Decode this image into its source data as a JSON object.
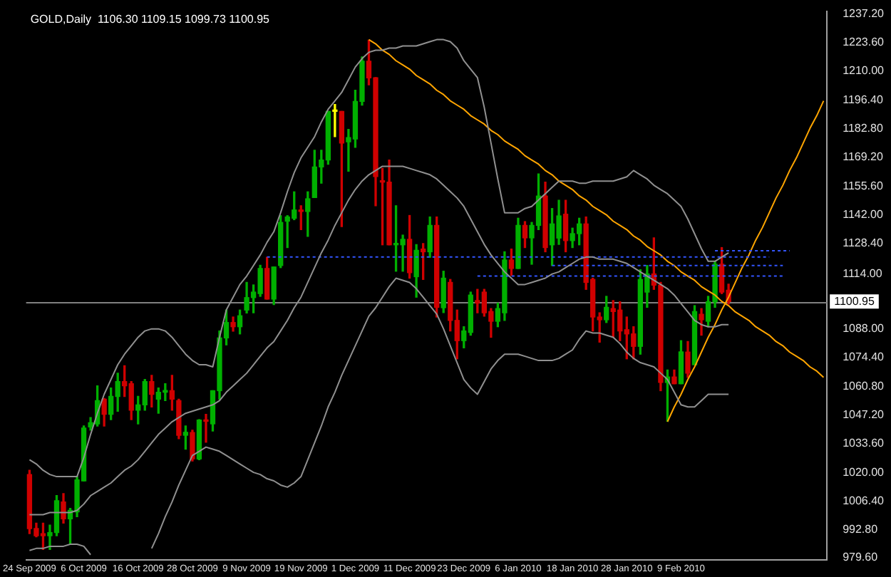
{
  "chart_data": {
    "type": "candlestick",
    "title": "GOLD,Daily  1106.30 1109.15 1099.73 1100.95",
    "categories": [
      "24 Sep 2009",
      null,
      null,
      null,
      null,
      null,
      null,
      null,
      "6 Oct 2009",
      null,
      null,
      null,
      null,
      null,
      null,
      null,
      "16 Oct 2009",
      null,
      null,
      null,
      null,
      null,
      null,
      null,
      "28 Oct 2009",
      null,
      null,
      null,
      null,
      null,
      null,
      null,
      "9 Nov 2009",
      null,
      null,
      null,
      null,
      null,
      null,
      null,
      "19 Nov 2009",
      null,
      null,
      null,
      null,
      null,
      null,
      null,
      "1 Dec 2009",
      null,
      null,
      null,
      null,
      null,
      null,
      null,
      "11 Dec 2009",
      null,
      null,
      null,
      null,
      null,
      null,
      null,
      "23 Dec 2009",
      null,
      null,
      null,
      null,
      null,
      null,
      null,
      "6 Jan 2010",
      null,
      null,
      null,
      null,
      null,
      null,
      null,
      "18 Jan 2010",
      null,
      null,
      null,
      null,
      null,
      null,
      null,
      "28 Jan 2010",
      null,
      null,
      null,
      null,
      null,
      null,
      null,
      "9 Feb 2010",
      null,
      null,
      null,
      null,
      null,
      null,
      null,
      null,
      null,
      null,
      null,
      null,
      null,
      null,
      null,
      null,
      null,
      null,
      null,
      null,
      null
    ],
    "ohlc": [
      [
        1019,
        1021,
        991,
        993.4
      ],
      [
        993.4,
        996,
        989.5,
        990
      ],
      [
        991,
        996,
        983.5,
        990
      ],
      [
        990,
        995,
        983.5,
        991.5
      ],
      [
        991.5,
        1009,
        990,
        1006.6
      ],
      [
        1006,
        1010,
        996,
        998
      ],
      [
        998,
        1003,
        986,
        1002
      ],
      [
        1001.3,
        1018,
        999,
        1016.5
      ],
      [
        1016,
        1042,
        1016,
        1041
      ],
      [
        1041.5,
        1046,
        1040,
        1043.5
      ],
      [
        1043,
        1061,
        1042,
        1054
      ],
      [
        1054.7,
        1055,
        1042,
        1047.5
      ],
      [
        1047.5,
        1060,
        1045,
        1056
      ],
      [
        1056,
        1067,
        1049,
        1063
      ],
      [
        1063,
        1070.5,
        1056,
        1061
      ],
      [
        1062,
        1063,
        1045,
        1049.5
      ],
      [
        1049.5,
        1056,
        1043,
        1052
      ],
      [
        1052,
        1064,
        1049.5,
        1063
      ],
      [
        1063,
        1066,
        1051,
        1057
      ],
      [
        1054.7,
        1060,
        1048,
        1058
      ],
      [
        1058,
        1062,
        1054,
        1058.8
      ],
      [
        1058.7,
        1066,
        1049.5,
        1054.7
      ],
      [
        1054,
        1054.7,
        1036,
        1037.6
      ],
      [
        1037.6,
        1042,
        1031,
        1039
      ],
      [
        1038.9,
        1040,
        1025.4,
        1026.4
      ],
      [
        1026.4,
        1045,
        1026,
        1044.8
      ],
      [
        1044.8,
        1047.5,
        1034.3,
        1044.2
      ],
      [
        1043,
        1058.7,
        1039.6,
        1058.7
      ],
      [
        1058.7,
        1087,
        1054.7,
        1083.7
      ],
      [
        1083.7,
        1096.9,
        1080.4,
        1091
      ],
      [
        1091,
        1093.6,
        1086.9,
        1089
      ],
      [
        1089,
        1096.9,
        1085.6,
        1094.2
      ],
      [
        1096.9,
        1110,
        1095.5,
        1102.8
      ],
      [
        1102.8,
        1108.8,
        1095.6,
        1105.4
      ],
      [
        1104.7,
        1118.1,
        1103.4,
        1116.6
      ],
      [
        1116.6,
        1121.9,
        1102.1,
        1102.1
      ],
      [
        1102.1,
        1117.3,
        1099.5,
        1117.3
      ],
      [
        1118,
        1141.6,
        1117,
        1138.4
      ],
      [
        1139,
        1141.6,
        1126.5,
        1141
      ],
      [
        1140.4,
        1152.9,
        1139.7,
        1144.3
      ],
      [
        1144.3,
        1146.3,
        1135,
        1143.6
      ],
      [
        1143.6,
        1152.9,
        1131.8,
        1149.6
      ],
      [
        1150.2,
        1172.6,
        1150.2,
        1164.7
      ],
      [
        1164.7,
        1172.6,
        1157,
        1168
      ],
      [
        1168,
        1191,
        1166,
        1191
      ],
      [
        1191,
        1194.3,
        1179,
        1191
      ],
      [
        1191,
        1191,
        1136.4,
        1176
      ],
      [
        1176.6,
        1182.5,
        1162.7,
        1178.6
      ],
      [
        1177.9,
        1201,
        1174,
        1195.7
      ],
      [
        1195.7,
        1216.8,
        1194,
        1214.8
      ],
      [
        1214.8,
        1224.7,
        1203.6,
        1206.9
      ],
      [
        1206.9,
        1207,
        1146.3,
        1160.1
      ],
      [
        1158.1,
        1164,
        1127.8,
        1157.5
      ],
      [
        1157.5,
        1168,
        1127.8,
        1127.8
      ],
      [
        1127.8,
        1146.3,
        1115.3,
        1128.3
      ],
      [
        1127.8,
        1132.4,
        1115.3,
        1130.4
      ],
      [
        1130.4,
        1141.7,
        1112,
        1114.6
      ],
      [
        1112.7,
        1127.9,
        1103,
        1125.2
      ],
      [
        1125.8,
        1128.4,
        1111.4,
        1124.5
      ],
      [
        1124.5,
        1141,
        1121.9,
        1137
      ],
      [
        1137,
        1141,
        1093.6,
        1098.2
      ],
      [
        1098,
        1115.3,
        1095.7,
        1112
      ],
      [
        1110,
        1111.4,
        1087,
        1092
      ],
      [
        1092,
        1096.9,
        1073.8,
        1082.4
      ],
      [
        1082.4,
        1089,
        1079,
        1087
      ],
      [
        1086.3,
        1105.4,
        1085,
        1104
      ],
      [
        1101.4,
        1106.7,
        1095.6,
        1100.2
      ],
      [
        1105.4,
        1106.7,
        1094,
        1095.6
      ],
      [
        1096.2,
        1097.6,
        1084,
        1091.6
      ],
      [
        1091.6,
        1100.2,
        1089,
        1097.6
      ],
      [
        1095.6,
        1124.5,
        1092,
        1120.6
      ],
      [
        1120.6,
        1125.8,
        1113.3,
        1116.6
      ],
      [
        1116.6,
        1140.4,
        1116.6,
        1137
      ],
      [
        1137,
        1138.8,
        1126.5,
        1131.1
      ],
      [
        1131.1,
        1138.4,
        1118.6,
        1137
      ],
      [
        1137,
        1161.4,
        1135,
        1150.9
      ],
      [
        1150.9,
        1157.5,
        1124.5,
        1126.5
      ],
      [
        1127.8,
        1145,
        1118,
        1137.7
      ],
      [
        1131,
        1148.9,
        1128,
        1141.5
      ],
      [
        1142.3,
        1148.9,
        1124.5,
        1129.8
      ],
      [
        1129.8,
        1135.7,
        1126.5,
        1133.1
      ],
      [
        1133.1,
        1140.4,
        1127.8,
        1137.7
      ],
      [
        1137.7,
        1141,
        1106.7,
        1110
      ],
      [
        1111.4,
        1112,
        1087,
        1093.6
      ],
      [
        1093.6,
        1095.6,
        1081.7,
        1092.3
      ],
      [
        1092.3,
        1103.4,
        1091,
        1098.2
      ],
      [
        1097.6,
        1101.4,
        1084,
        1096.2
      ],
      [
        1096.9,
        1100.8,
        1082.4,
        1087
      ],
      [
        1087.6,
        1093.6,
        1073.8,
        1085.6
      ],
      [
        1085.6,
        1089,
        1073.8,
        1079.7
      ],
      [
        1079.7,
        1116,
        1076,
        1111.4
      ],
      [
        1105.4,
        1118,
        1098.2,
        1114
      ],
      [
        1114,
        1131.1,
        1106.7,
        1108.7
      ],
      [
        1108.7,
        1110,
        1058.7,
        1062.6
      ],
      [
        1062.6,
        1068.5,
        1044.2,
        1065.2
      ],
      [
        1065.2,
        1068.5,
        1062,
        1062
      ],
      [
        1062,
        1082.4,
        1062,
        1077.1
      ],
      [
        1077,
        1082,
        1065,
        1067
      ],
      [
        1071,
        1099,
        1071,
        1096.2
      ],
      [
        1094.9,
        1097.6,
        1085,
        1092.3
      ],
      [
        1091.6,
        1103.4,
        1089,
        1100.8
      ],
      [
        1100.8,
        1120,
        1098.2,
        1118.6
      ],
      [
        1118.6,
        1126.5,
        1104.7,
        1105.4
      ],
      [
        1106.3,
        1109.15,
        1099.73,
        1100.95
      ],
      null,
      null,
      null,
      null,
      null,
      null,
      null,
      null,
      null,
      null,
      null,
      null,
      null,
      null
    ],
    "colors": [
      "#d00000",
      "#d00000",
      "#d00000",
      "#00b000",
      "#00b000",
      "#d00000",
      "#00b000",
      "#00b000",
      "#00b000",
      "#00b000",
      "#00b000",
      "#d00000",
      "#00b000",
      "#00b000",
      "#d00000",
      "#d00000",
      "#00b000",
      "#00b000",
      "#d00000",
      "#00b000",
      "#00b000",
      "#d00000",
      "#d00000",
      "#00b000",
      "#d00000",
      "#00b000",
      "#d00000",
      "#00b000",
      "#00b000",
      "#00b000",
      "#d00000",
      "#00b000",
      "#00b000",
      "#00b000",
      "#00b000",
      "#d00000",
      "#00b000",
      "#00b000",
      "#00b000",
      "#00b000",
      "#d00000",
      "#00b000",
      "#00b000",
      "#00b000",
      "#00b000",
      "#ffff00",
      "#d00000",
      "#00b000",
      "#00b000",
      "#00b000",
      "#d00000",
      "#d00000",
      "#d00000",
      "#d00000",
      "#00b000",
      "#00b000",
      "#d00000",
      "#00b000",
      "#d00000",
      "#00b000",
      "#d00000",
      "#00b000",
      "#d00000",
      "#d00000",
      "#00b000",
      "#00b000",
      "#d00000",
      "#d00000",
      "#d00000",
      "#00b000",
      "#00b000",
      "#d00000",
      "#00b000",
      "#d00000",
      "#00b000",
      "#00b000",
      "#d00000",
      "#00b000",
      "#00b000",
      "#d00000",
      "#00b000",
      "#00b000",
      "#d00000",
      "#d00000",
      "#d00000",
      "#00b000",
      "#d00000",
      "#d00000",
      "#d00000",
      "#d00000",
      "#00b000",
      "#00b000",
      "#d00000",
      "#d00000",
      "#00b000",
      "#d00000",
      "#00b000",
      "#d00000",
      "#00b000",
      "#d00000",
      "#00b000",
      "#00b000",
      "#d00000",
      "#d00000",
      null,
      null,
      null,
      null,
      null,
      null,
      null,
      null,
      null,
      null,
      null,
      null,
      null,
      null
    ],
    "ylim": [
      978.5,
      1238.5
    ],
    "yticks": [
      {
        "value": 979.6,
        "label": "979.60"
      },
      {
        "value": 992.8,
        "label": "992.80"
      },
      {
        "value": 1006.4,
        "label": "1006.40"
      },
      {
        "value": 1020,
        "label": "1020.00"
      },
      {
        "value": 1033.6,
        "label": "1033.60"
      },
      {
        "value": 1047.2,
        "label": "1047.20"
      },
      {
        "value": 1060.8,
        "label": "1060.80"
      },
      {
        "value": 1074.4,
        "label": "1074.40"
      },
      {
        "value": 1088,
        "label": "1088.00"
      },
      {
        "value": 1114,
        "label": "1114.00"
      },
      {
        "value": 1128.4,
        "label": "1128.40"
      },
      {
        "value": 1142,
        "label": "1142.00"
      },
      {
        "value": 1155.6,
        "label": "1155.60"
      },
      {
        "value": 1169.2,
        "label": "1169.20"
      },
      {
        "value": 1182.8,
        "label": "1182.80"
      },
      {
        "value": 1196.4,
        "label": "1196.40"
      },
      {
        "value": 1210,
        "label": "1210.00"
      },
      {
        "value": 1223.6,
        "label": "1223.60"
      },
      {
        "value": 1237.2,
        "label": "1237.20"
      }
    ],
    "ref_lines": [
      {
        "axis": "y",
        "value": 1100.95,
        "label": "1100.95",
        "color": "#808080"
      }
    ],
    "series": [
      {
        "type": "line",
        "color": "#909090",
        "values": [
          1026,
          1024,
          1021,
          1019,
          1018,
          1018,
          1018,
          1018,
          1027,
          1038,
          1048,
          1057,
          1064,
          1071,
          1076,
          1080,
          1084,
          1087,
          1088,
          1088,
          1087,
          1084,
          1080,
          1076,
          1073,
          1071,
          1071,
          1070,
          1084,
          1097,
          1103,
          1109,
          1113,
          1118,
          1123,
          1129,
          1134,
          1143,
          1153,
          1162,
          1169,
          1174,
          1179,
          1186,
          1192,
          1196,
          1200,
          1206,
          1212,
          1216,
          1219,
          1220,
          1220,
          1221,
          1221,
          1222,
          1222,
          1222,
          1223,
          1224,
          1225,
          1225,
          1224,
          1221,
          1215,
          1211,
          1207,
          1193,
          1176,
          1159,
          1143,
          1143,
          1143,
          1145,
          1146,
          1149,
          1152,
          1155,
          1158,
          1158,
          1158,
          1157,
          1157,
          1158,
          1158,
          1158,
          1158,
          1159,
          1160,
          1163,
          1161,
          1159,
          1156,
          1154,
          1152,
          1149,
          1146,
          1140,
          1133,
          1126,
          1120,
          1120,
          1122,
          1124,
          null,
          null,
          null,
          null,
          null,
          null,
          null,
          null,
          null,
          null,
          null,
          null,
          null,
          null
        ]
      },
      {
        "type": "line",
        "color": "#909090",
        "values": [
          1000,
          1000,
          1000,
          1001,
          1001,
          1001,
          1001,
          1002,
          1005,
          1009,
          1011,
          1013,
          1015,
          1018,
          1021,
          1023,
          1026,
          1030,
          1034,
          1038,
          1041,
          1044,
          1046,
          1048,
          1049,
          1050,
          1051,
          1052,
          1054,
          1058,
          1061,
          1064,
          1067,
          1071,
          1075,
          1079,
          1082,
          1087,
          1092,
          1098,
          1103,
          1110,
          1117,
          1124,
          1130,
          1137,
          1143,
          1149,
          1154,
          1158,
          1161,
          1163,
          1165,
          1165,
          1165,
          1165,
          1164,
          1163,
          1162,
          1161,
          1159,
          1156,
          1153,
          1150,
          1146,
          1140,
          1134,
          1128,
          1123,
          1119,
          1115,
          1112,
          1109,
          1109,
          1110,
          1111,
          1112,
          1114,
          1115,
          1117,
          1119,
          1121,
          1122,
          1122,
          1121,
          1121,
          1121,
          1120,
          1119,
          1117,
          1115,
          1113,
          1111,
          1109,
          1107,
          1104,
          1100,
          1096,
          1092,
          1090,
          1089,
          1089,
          1090,
          1090,
          null,
          null,
          null,
          null,
          null,
          null,
          null,
          null,
          null,
          null,
          null,
          null,
          null,
          null
        ]
      },
      {
        "type": "line",
        "color": "#909090",
        "values": [
          983,
          984,
          984,
          985,
          985,
          985,
          986,
          986,
          985,
          981,
          null,
          null,
          null,
          null,
          null,
          null,
          null,
          null,
          984,
          991,
          999,
          1006,
          1014,
          1021,
          1028,
          1030,
          1032,
          1031,
          1030,
          1028,
          1026,
          1024,
          1022,
          1020,
          1019,
          1017,
          1016,
          1014,
          1013,
          1015,
          1018,
          1026,
          1034,
          1042,
          1051,
          1058,
          1066,
          1073,
          1080,
          1087,
          1094,
          1098,
          1103,
          1108,
          1112,
          1111,
          1110,
          1107,
          1103,
          1099,
          1095,
          1088,
          1080,
          1072,
          1064,
          1060,
          1057,
          1063,
          1069,
          1073,
          1076,
          1076,
          1076,
          1075,
          1074,
          1073,
          1073,
          1073,
          1074,
          1076,
          1078,
          1083,
          1087,
          1086,
          1086,
          1085,
          1084,
          1081,
          1077,
          1074,
          1072,
          1071,
          1070,
          1067,
          1064,
          1058,
          1052,
          1051,
          1051,
          1054,
          1057,
          1057,
          1057,
          1057,
          null,
          null,
          null,
          null,
          null,
          null,
          null,
          null,
          null,
          null,
          null,
          null,
          null,
          null
        ]
      },
      {
        "type": "line",
        "color": "#3355ff",
        "line_style": "dashed",
        "values": [
          null,
          null,
          null,
          null,
          null,
          null,
          null,
          null,
          null,
          null,
          null,
          null,
          null,
          null,
          null,
          null,
          null,
          null,
          null,
          null,
          null,
          null,
          null,
          null,
          null,
          null,
          null,
          null,
          null,
          null,
          null,
          null,
          null,
          null,
          null,
          1122,
          1122,
          1122,
          1122,
          1122,
          1122,
          1122,
          1122,
          1122,
          1122,
          1122,
          1122,
          1122,
          1122,
          1122,
          1122,
          1122,
          1122,
          1122,
          1122,
          1122,
          1122,
          1122,
          1122,
          1122,
          1122,
          1122,
          1122,
          1122,
          1122,
          1122,
          1122,
          1122,
          1122,
          1122,
          1122,
          1122,
          1122,
          1122,
          1122,
          1122,
          1122,
          1122,
          1122,
          1122,
          1122,
          1122,
          1122,
          1122,
          1122,
          1122,
          1122,
          1122,
          1122,
          1122,
          1122,
          1122,
          1122,
          1122,
          1122,
          1122,
          1122,
          1122,
          1122,
          1122,
          1122,
          1122,
          1122,
          1122,
          1122,
          1122,
          1122,
          1122,
          1122,
          1122,
          null,
          null,
          null,
          null,
          null,
          null,
          null,
          null
        ]
      },
      {
        "type": "line",
        "color": "#3355ff",
        "line_style": "dashed",
        "values": [
          null,
          null,
          null,
          null,
          null,
          null,
          null,
          null,
          null,
          null,
          null,
          null,
          null,
          null,
          null,
          null,
          null,
          null,
          null,
          null,
          null,
          null,
          null,
          null,
          null,
          null,
          null,
          null,
          null,
          null,
          null,
          null,
          null,
          null,
          null,
          null,
          null,
          null,
          null,
          null,
          null,
          null,
          null,
          null,
          null,
          null,
          null,
          null,
          null,
          null,
          null,
          null,
          null,
          null,
          null,
          null,
          null,
          null,
          null,
          null,
          null,
          null,
          null,
          null,
          null,
          null,
          1113,
          1113,
          1113,
          1113,
          1113,
          1113,
          1113,
          1113,
          1113,
          1113,
          1113,
          1113,
          1113,
          1113,
          1113,
          1113,
          1113,
          1113,
          1113,
          1113,
          1113,
          1113,
          1113,
          1113,
          1113,
          1113,
          1113,
          1113,
          1113,
          1113,
          1113,
          1113,
          1113,
          1113,
          1113,
          1113,
          1113,
          1113,
          1113,
          1113,
          1113,
          1113,
          1113,
          1113,
          1113,
          1113,
          null,
          null,
          null,
          null,
          null,
          null
        ]
      },
      {
        "type": "line",
        "color": "#3355ff",
        "line_style": "dashed",
        "values": [
          null,
          null,
          null,
          null,
          null,
          null,
          null,
          null,
          null,
          null,
          null,
          null,
          null,
          null,
          null,
          null,
          null,
          null,
          null,
          null,
          null,
          null,
          null,
          null,
          null,
          null,
          null,
          null,
          null,
          null,
          null,
          null,
          null,
          null,
          null,
          null,
          null,
          null,
          null,
          null,
          null,
          null,
          null,
          null,
          null,
          null,
          null,
          null,
          null,
          null,
          null,
          null,
          null,
          null,
          null,
          null,
          null,
          null,
          null,
          null,
          null,
          null,
          null,
          null,
          null,
          null,
          null,
          null,
          null,
          null,
          null,
          null,
          null,
          null,
          null,
          null,
          null,
          null,
          null,
          null,
          null,
          null,
          null,
          null,
          null,
          null,
          null,
          null,
          null,
          null,
          null,
          null,
          null,
          null,
          null,
          null,
          null,
          null,
          null,
          null,
          null,
          1125,
          1125,
          1125,
          1125,
          1125,
          1125,
          1125,
          1125,
          1125,
          1125,
          1125,
          1125,
          null,
          null,
          null,
          null,
          null
        ]
      },
      {
        "type": "line",
        "color": "#3355ff",
        "line_style": "dashed",
        "values": [
          null,
          null,
          null,
          null,
          null,
          null,
          null,
          null,
          null,
          null,
          null,
          null,
          null,
          null,
          null,
          null,
          null,
          null,
          null,
          null,
          null,
          null,
          null,
          null,
          null,
          null,
          null,
          null,
          null,
          null,
          null,
          null,
          null,
          null,
          null,
          null,
          null,
          null,
          null,
          null,
          null,
          null,
          null,
          null,
          null,
          null,
          null,
          null,
          null,
          null,
          null,
          null,
          null,
          null,
          null,
          null,
          null,
          null,
          null,
          null,
          null,
          null,
          null,
          null,
          null,
          null,
          null,
          null,
          null,
          null,
          null,
          null,
          null,
          null,
          null,
          null,
          null,
          1118,
          1118,
          1118,
          1118,
          1118,
          1118,
          1118,
          1118,
          1118,
          1118,
          1118,
          1118,
          1118,
          1118,
          1118,
          1118,
          1118,
          1118,
          1118,
          1118,
          1118,
          1118,
          1118,
          1118,
          1118,
          1118,
          1118,
          1118,
          1118,
          1118,
          1118,
          1118,
          1118,
          1118,
          1118,
          null,
          null,
          null,
          null,
          null,
          null
        ]
      },
      {
        "type": "line",
        "color": "#ffa500",
        "values": [
          null,
          null,
          null,
          null,
          null,
          null,
          null,
          null,
          null,
          null,
          null,
          null,
          null,
          null,
          null,
          null,
          null,
          null,
          null,
          null,
          null,
          null,
          null,
          null,
          null,
          null,
          null,
          null,
          null,
          null,
          null,
          null,
          null,
          null,
          null,
          null,
          null,
          null,
          null,
          null,
          null,
          null,
          null,
          null,
          null,
          null,
          null,
          null,
          null,
          null,
          1225,
          1223,
          1220,
          1218,
          1215,
          1213,
          1211,
          1208,
          1206,
          1204,
          1201,
          1199,
          1196,
          1194,
          1192,
          1189,
          1187,
          1185,
          1182,
          1180,
          1177,
          1175,
          1173,
          1170,
          1168,
          1166,
          1163,
          1161,
          1158,
          1156,
          1154,
          1151,
          1149,
          1146,
          1144,
          1142,
          1139,
          1137,
          1135,
          1132,
          1130,
          1127,
          1125,
          1123,
          1120,
          1118,
          1115,
          1113,
          1111,
          1108,
          1106,
          1104,
          1101,
          1099,
          1096,
          1094,
          1092,
          1089,
          1087,
          1085,
          1082,
          1080,
          1077,
          1075,
          1073,
          1070,
          1068,
          1065
        ]
      },
      {
        "type": "line",
        "color": "#ffa500",
        "values": [
          null,
          null,
          null,
          null,
          null,
          null,
          null,
          null,
          null,
          null,
          null,
          null,
          null,
          null,
          null,
          null,
          null,
          null,
          null,
          null,
          null,
          null,
          null,
          null,
          null,
          null,
          null,
          null,
          null,
          null,
          null,
          null,
          null,
          null,
          null,
          null,
          null,
          null,
          null,
          null,
          null,
          null,
          null,
          null,
          null,
          null,
          null,
          null,
          null,
          null,
          null,
          null,
          null,
          null,
          null,
          null,
          null,
          null,
          null,
          null,
          null,
          null,
          null,
          null,
          null,
          null,
          null,
          null,
          null,
          null,
          null,
          null,
          null,
          null,
          null,
          null,
          null,
          null,
          null,
          null,
          null,
          null,
          null,
          null,
          null,
          null,
          null,
          null,
          null,
          null,
          null,
          null,
          null,
          null,
          1044,
          1051,
          1057,
          1064,
          1070,
          1077,
          1084,
          1090,
          1097,
          1103,
          1110,
          1117,
          1123,
          1130,
          1136,
          1143,
          1150,
          1156,
          1163,
          1169,
          1176,
          1183,
          1189,
          1196
        ]
      }
    ]
  }
}
